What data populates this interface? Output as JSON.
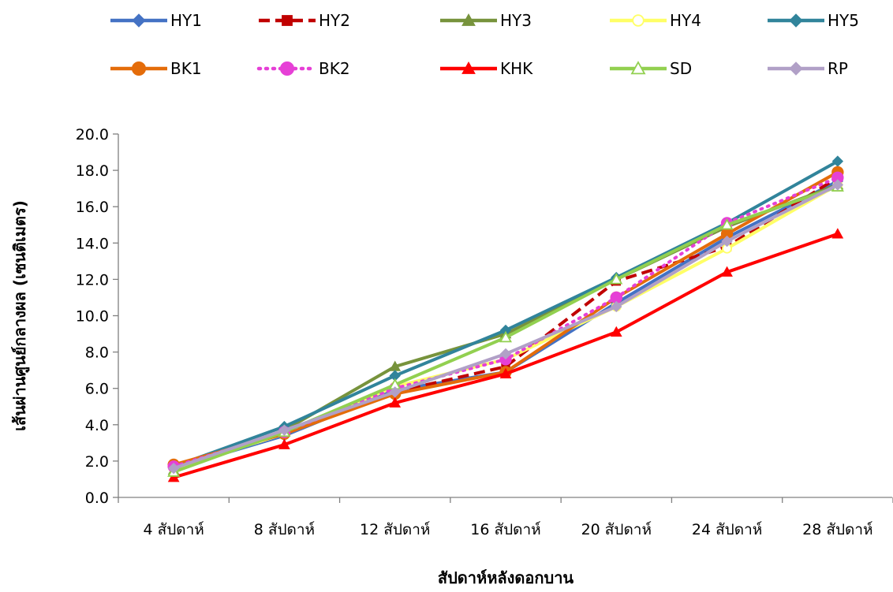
{
  "chart_data": {
    "type": "line",
    "xlabel": "สัปดาห์หลังดอกบาน",
    "ylabel": "เส้นผ่านศูนย์กลางผล (เซนติเมตร)",
    "ylim": [
      0,
      20
    ],
    "yticks": [
      "0.0",
      "2.0",
      "4.0",
      "6.0",
      "8.0",
      "10.0",
      "12.0",
      "14.0",
      "16.0",
      "18.0",
      "20.0"
    ],
    "categories": [
      "4 สัปดาห์",
      "8 สัปดาห์",
      "12 สัปดาห์",
      "16 สัปดาห์",
      "20 สัปดาห์",
      "24 สัปดาห์",
      "28 สัปดาห์"
    ],
    "legend_position": "top",
    "grid": false,
    "series": [
      {
        "name": "HY1",
        "color": "#4472C4",
        "dash": "solid",
        "marker": "diamond",
        "values": [
          1.6,
          3.4,
          5.9,
          6.9,
          10.7,
          14.3,
          17.4
        ]
      },
      {
        "name": "HY2",
        "color": "#C00000",
        "dash": "dashed",
        "marker": "square",
        "values": [
          1.7,
          3.6,
          5.8,
          7.2,
          11.9,
          13.8,
          17.6
        ]
      },
      {
        "name": "HY3",
        "color": "#77933C",
        "dash": "solid",
        "marker": "triangle",
        "values": [
          1.5,
          3.7,
          7.2,
          9.0,
          12.0,
          14.9,
          17.2
        ]
      },
      {
        "name": "HY4",
        "color": "#FFFF66",
        "dash": "solid",
        "marker": "circle-open",
        "values": [
          1.6,
          3.5,
          6.1,
          7.6,
          10.5,
          13.7,
          17.2
        ]
      },
      {
        "name": "HY5",
        "color": "#31849B",
        "dash": "solid",
        "marker": "diamond",
        "values": [
          1.7,
          3.9,
          6.7,
          9.2,
          12.1,
          15.1,
          18.5
        ]
      },
      {
        "name": "BK1",
        "color": "#E46C0A",
        "dash": "solid",
        "marker": "circle",
        "values": [
          1.8,
          3.5,
          5.7,
          6.9,
          11.0,
          14.5,
          17.9
        ]
      },
      {
        "name": "BK2",
        "color": "#E640D6",
        "dash": "dotted",
        "marker": "circle",
        "values": [
          1.7,
          3.6,
          6.0,
          7.6,
          11.0,
          15.1,
          17.6
        ]
      },
      {
        "name": "KHK",
        "color": "#FF0000",
        "dash": "solid",
        "marker": "triangle",
        "values": [
          1.1,
          2.9,
          5.2,
          6.8,
          9.1,
          12.4,
          14.5
        ]
      },
      {
        "name": "SD",
        "color": "#92D050",
        "dash": "solid",
        "marker": "triangle-open",
        "values": [
          1.4,
          3.6,
          6.2,
          8.8,
          12.0,
          15.0,
          17.1
        ]
      },
      {
        "name": "RP",
        "color": "#B1A0C7",
        "dash": "solid",
        "marker": "diamond",
        "values": [
          1.6,
          3.7,
          5.8,
          7.9,
          10.5,
          14.1,
          17.2
        ]
      }
    ]
  }
}
